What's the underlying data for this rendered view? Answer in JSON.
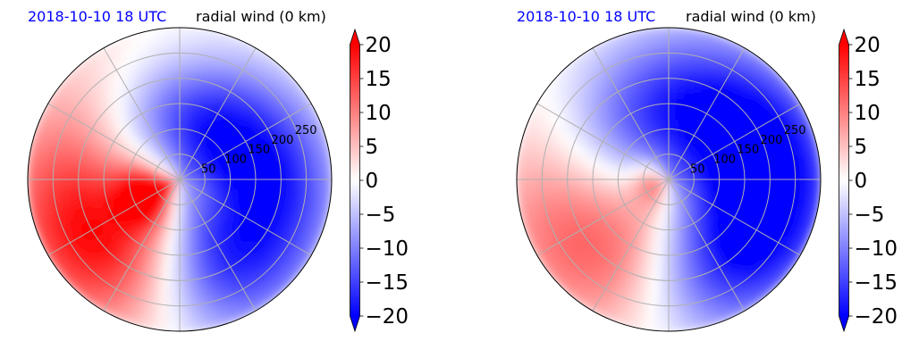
{
  "colors": {
    "positive": "#ff0000",
    "negative": "#0000ff",
    "zero": "#ffffff",
    "date_label": "#0000ff",
    "grid": "#b0b0b0"
  },
  "chart_data": [
    {
      "type": "heatmap",
      "projection": "polar",
      "date_label": "2018-10-10 18 UTC",
      "title": "radial wind (0 km)",
      "radial_ticks": [
        50,
        100,
        150,
        200,
        250
      ],
      "rlim": [
        0,
        300
      ],
      "angular_gridlines_deg": [
        0,
        30,
        60,
        90,
        120,
        150,
        180,
        210,
        240,
        270,
        300,
        330
      ],
      "grid": true,
      "colorbar": {
        "vmin": -20,
        "vmax": 20,
        "ticks": [
          "20",
          "15",
          "10",
          "5",
          "0",
          "−5",
          "−10",
          "−15",
          "−20"
        ],
        "extend": "both",
        "colormap": "bwr"
      },
      "field_features": [
        {
          "name": "inflow north-east",
          "angle_deg": 45,
          "r": 110,
          "spread_deg": 70,
          "spread_r": 90,
          "value": -20
        },
        {
          "name": "inflow east",
          "angle_deg": -10,
          "r": 220,
          "spread_deg": 40,
          "spread_r": 80,
          "value": -10
        },
        {
          "name": "inflow south-east",
          "angle_deg": -70,
          "r": 200,
          "spread_deg": 30,
          "spread_r": 110,
          "value": -12
        },
        {
          "name": "outflow west",
          "angle_deg": 190,
          "r": 180,
          "spread_deg": 55,
          "spread_r": 120,
          "value": 10
        },
        {
          "name": "outflow south-west",
          "angle_deg": 220,
          "r": 210,
          "spread_deg": 40,
          "spread_r": 110,
          "value": 12
        },
        {
          "name": "outflow core",
          "angle_deg": 205,
          "r": 65,
          "spread_deg": 25,
          "spread_r": 40,
          "value": 20
        }
      ]
    },
    {
      "type": "heatmap",
      "projection": "polar",
      "date_label": "2018-10-10 18 UTC",
      "title": "radial wind (0 km)",
      "radial_ticks": [
        50,
        100,
        150,
        200,
        250
      ],
      "rlim": [
        0,
        300
      ],
      "angular_gridlines_deg": [
        0,
        30,
        60,
        90,
        120,
        150,
        180,
        210,
        240,
        270,
        300,
        330
      ],
      "grid": true,
      "colorbar": {
        "vmin": -20,
        "vmax": 20,
        "ticks": [
          "20",
          "15",
          "10",
          "5",
          "0",
          "−5",
          "−10",
          "−15",
          "−20"
        ],
        "extend": "both",
        "colormap": "bwr"
      },
      "field_features": [
        {
          "name": "inflow north",
          "angle_deg": 60,
          "r": 130,
          "spread_deg": 90,
          "spread_r": 110,
          "value": -20
        },
        {
          "name": "inflow east",
          "angle_deg": 0,
          "r": 210,
          "spread_deg": 40,
          "spread_r": 90,
          "value": -13
        },
        {
          "name": "inflow south-east",
          "angle_deg": -60,
          "r": 220,
          "spread_deg": 35,
          "spread_r": 100,
          "value": -9
        },
        {
          "name": "outflow west",
          "angle_deg": 195,
          "r": 190,
          "spread_deg": 50,
          "spread_r": 120,
          "value": 8
        },
        {
          "name": "outflow south-west",
          "angle_deg": 225,
          "r": 200,
          "spread_deg": 40,
          "spread_r": 110,
          "value": 9
        },
        {
          "name": "outflow core",
          "angle_deg": 190,
          "r": 35,
          "spread_deg": 40,
          "spread_r": 25,
          "value": 8
        }
      ]
    }
  ]
}
